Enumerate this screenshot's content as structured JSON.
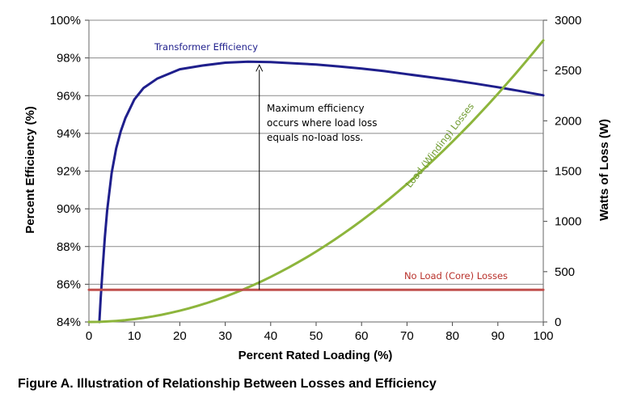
{
  "caption": "Figure A. Illustration of Relationship Between Losses and Efficiency",
  "chart_data": {
    "type": "line",
    "xlabel": "Percent Rated Loading (%)",
    "ylabel": "Percent Efficiency (%)",
    "y2label": "Watts of Loss (W)",
    "xlim": [
      0,
      100
    ],
    "ylim": [
      84,
      100
    ],
    "y2lim": [
      0,
      3000
    ],
    "x_ticks": [
      "0",
      "10",
      "20",
      "30",
      "40",
      "50",
      "60",
      "70",
      "80",
      "90",
      "100"
    ],
    "y_ticks": [
      "84%",
      "86%",
      "88%",
      "90%",
      "92%",
      "94%",
      "96%",
      "98%",
      "100%"
    ],
    "y2_ticks": [
      "0",
      "500",
      "1000",
      "1500",
      "2000",
      "2500",
      "3000"
    ],
    "grid": "horizontal",
    "colors": {
      "efficiency": "#1f1f8c",
      "load_loss": "#8db53c",
      "no_load_loss": "#c0504d"
    },
    "series": [
      {
        "name": "Transformer Efficiency",
        "axis": "left",
        "x": [
          2.3,
          2.6,
          3,
          3.5,
          4,
          5,
          6,
          7,
          8,
          10,
          12,
          15,
          18,
          20,
          25,
          30,
          35,
          40,
          45,
          50,
          55,
          60,
          65,
          70,
          75,
          80,
          85,
          90,
          95,
          100
        ],
        "y": [
          84.0,
          85.3,
          86.8,
          88.5,
          89.9,
          91.9,
          93.2,
          94.1,
          94.8,
          95.8,
          96.4,
          96.9,
          97.2,
          97.4,
          97.6,
          97.75,
          97.8,
          97.78,
          97.72,
          97.65,
          97.55,
          97.44,
          97.3,
          97.14,
          96.98,
          96.82,
          96.64,
          96.45,
          96.24,
          96.02
        ]
      },
      {
        "name": "Load (Winding) Losses",
        "axis": "right",
        "x": [
          0,
          10,
          20,
          30,
          40,
          50,
          60,
          70,
          80,
          90,
          100
        ],
        "y": [
          0,
          28,
          112,
          252,
          448,
          700,
          1008,
          1372,
          1792,
          2268,
          2800
        ]
      },
      {
        "name": "No Load (Core) Losses",
        "axis": "right",
        "x": [
          0,
          100
        ],
        "y": [
          320,
          320
        ]
      }
    ],
    "annotations": [
      {
        "text_lines": [
          "Maximum efficiency",
          "occurs where load loss",
          "equals no-load loss."
        ],
        "arrow_x": 37.5,
        "arrow_from_loss": 320,
        "arrow_to_efficiency": 97.8
      }
    ]
  }
}
